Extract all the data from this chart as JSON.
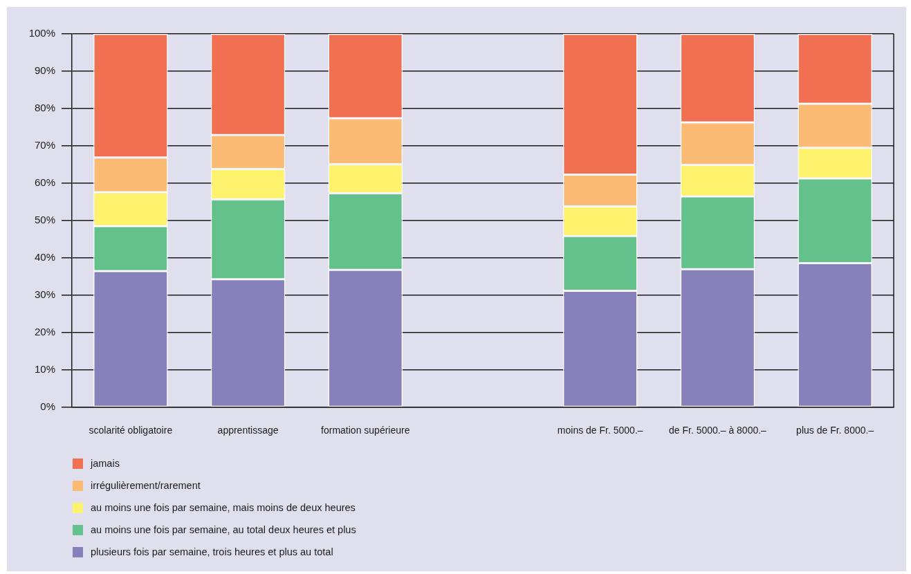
{
  "chart_data": {
    "type": "bar",
    "stacked": true,
    "categories": [
      "scolarité obligatoire",
      "apprentissage",
      "formation supérieure",
      null,
      "moins de Fr. 5000.–",
      "de Fr. 5000.– à 8000.–",
      "plus de Fr. 8000.–"
    ],
    "series": [
      {
        "name": "plusieurs fois par semaine, trois heures et plus au total",
        "color": "#8781bb",
        "values": [
          36.5,
          34.3,
          36.8,
          null,
          31.2,
          37.0,
          38.6
        ]
      },
      {
        "name": "au moins une fois par semaine, au total deux heures et plus",
        "color": "#64c18b",
        "values": [
          12.0,
          21.4,
          20.5,
          null,
          14.7,
          19.5,
          22.7
        ]
      },
      {
        "name": "au moins une fois par semaine, mais moins de deux heures",
        "color": "#fff36e",
        "values": [
          9.1,
          8.1,
          7.8,
          null,
          7.9,
          8.4,
          8.2
        ]
      },
      {
        "name": "irrégulièrement/rarement",
        "color": "#fbbb74",
        "values": [
          9.3,
          9.1,
          12.3,
          null,
          8.5,
          11.4,
          11.8
        ]
      },
      {
        "name": "jamais",
        "color": "#f27052",
        "values": [
          33.1,
          27.1,
          22.6,
          null,
          37.7,
          23.7,
          18.7
        ]
      }
    ],
    "ylim": [
      0,
      100
    ],
    "yticks": [
      {
        "value": 0,
        "label": "0%"
      },
      {
        "value": 10,
        "label": "10%"
      },
      {
        "value": 20,
        "label": "20%"
      },
      {
        "value": 30,
        "label": "30%"
      },
      {
        "value": 40,
        "label": "40%"
      },
      {
        "value": 50,
        "label": "50%"
      },
      {
        "value": 60,
        "label": "60%"
      },
      {
        "value": 70,
        "label": "70%"
      },
      {
        "value": 80,
        "label": "80%"
      },
      {
        "value": 90,
        "label": "90%"
      },
      {
        "value": 100,
        "label": "100%"
      }
    ],
    "grid": "y",
    "legend": "bottom left"
  }
}
